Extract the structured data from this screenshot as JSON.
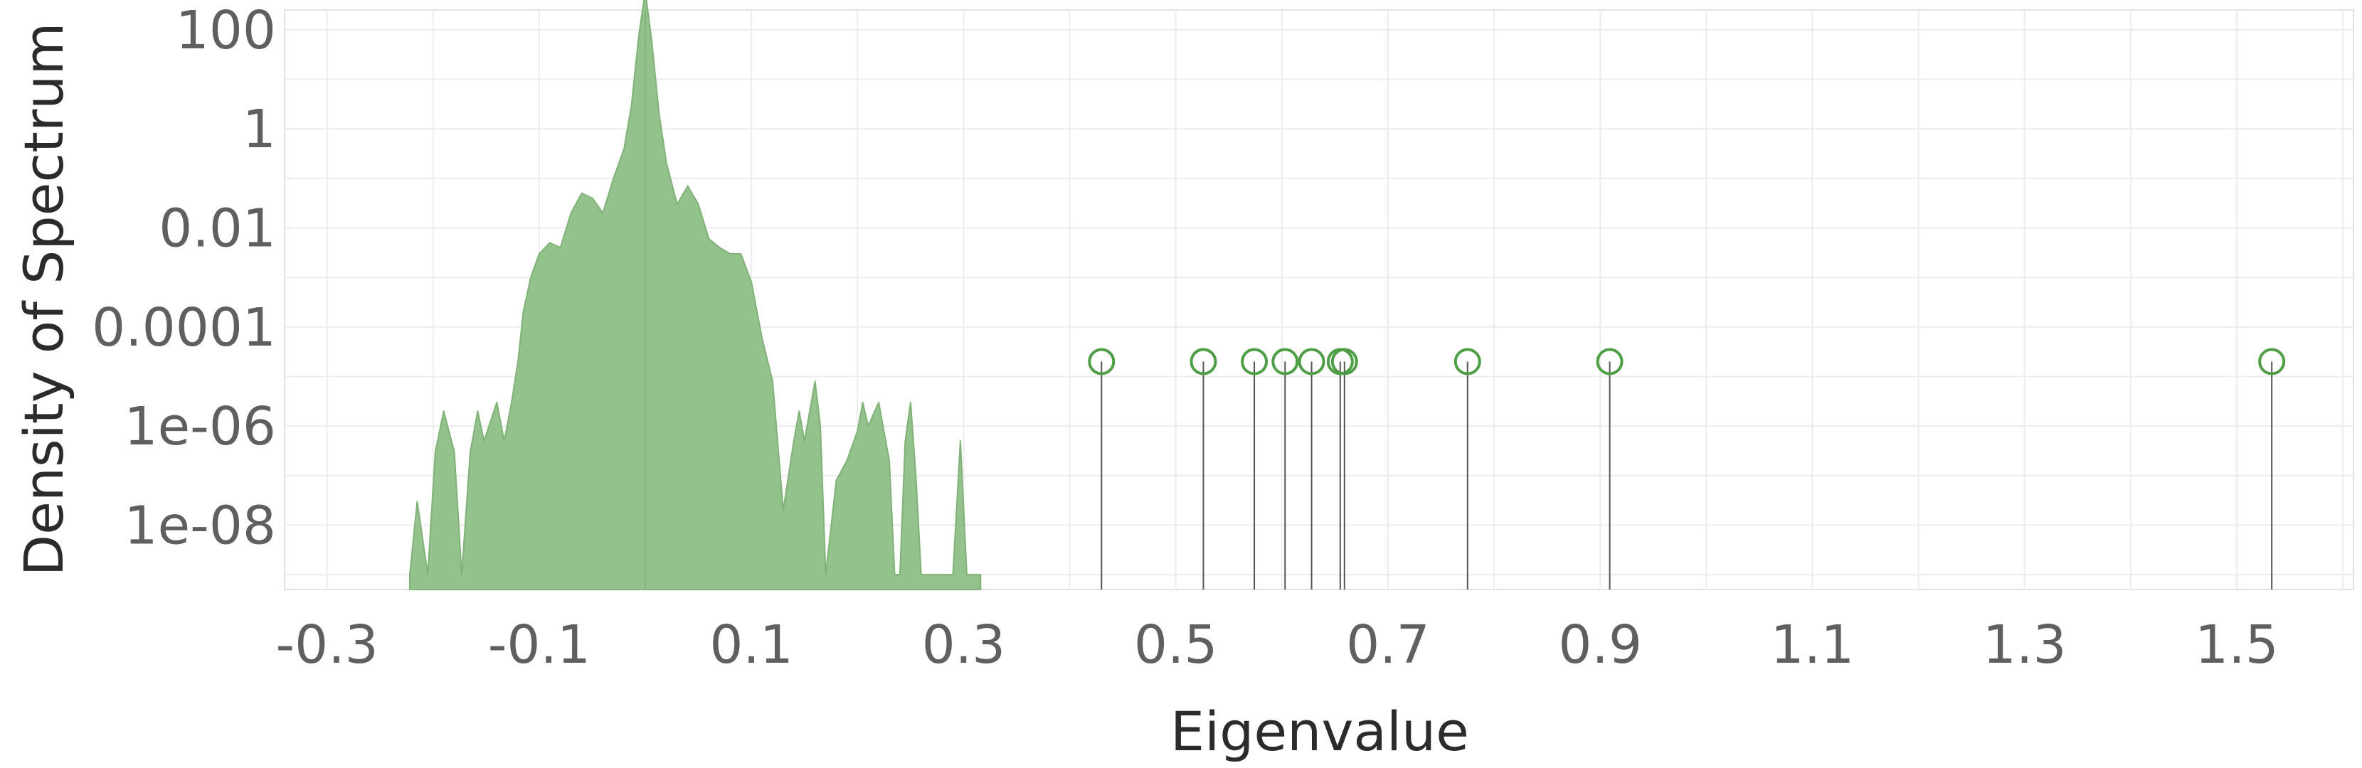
{
  "chart_data": {
    "type": "area",
    "xlabel": "Eigenvalue",
    "ylabel": "Density of Spectrum",
    "y_scale": "log",
    "xlim": [
      -0.34,
      1.61
    ],
    "ylim_log10": [
      -9.3,
      2.4
    ],
    "x_ticks": [
      {
        "value": -0.3,
        "label": "-0.3"
      },
      {
        "value": -0.1,
        "label": "-0.1"
      },
      {
        "value": 0.1,
        "label": "0.1"
      },
      {
        "value": 0.3,
        "label": "0.3"
      },
      {
        "value": 0.5,
        "label": "0.5"
      },
      {
        "value": 0.7,
        "label": "0.7"
      },
      {
        "value": 0.9,
        "label": "0.9"
      },
      {
        "value": 1.1,
        "label": "1.1"
      },
      {
        "value": 1.3,
        "label": "1.3"
      },
      {
        "value": 1.5,
        "label": "1.5"
      }
    ],
    "y_ticks": [
      {
        "value": 100,
        "label": "100"
      },
      {
        "value": 1,
        "label": "1"
      },
      {
        "value": 0.01,
        "label": "0.01"
      },
      {
        "value": 0.0001,
        "label": "0.0001"
      },
      {
        "value": 1e-06,
        "label": "1e-06"
      },
      {
        "value": 1e-08,
        "label": "1e-08"
      }
    ],
    "grid": true,
    "colors": {
      "fill": "#94c28c",
      "stroke": "#7fb276",
      "marker": "#4e9e45",
      "stem": "#555555",
      "grid": "#ececec"
    },
    "density": {
      "x": [
        -0.222,
        -0.215,
        -0.205,
        -0.198,
        -0.19,
        -0.18,
        -0.173,
        -0.165,
        -0.158,
        -0.152,
        -0.14,
        -0.133,
        -0.126,
        -0.12,
        -0.115,
        -0.108,
        -0.1,
        -0.09,
        -0.08,
        -0.07,
        -0.06,
        -0.05,
        -0.04,
        -0.03,
        -0.02,
        -0.013,
        -0.006,
        0.0,
        0.006,
        0.013,
        0.02,
        0.03,
        0.04,
        0.05,
        0.06,
        0.07,
        0.08,
        0.09,
        0.1,
        0.11,
        0.12,
        0.13,
        0.14,
        0.145,
        0.15,
        0.16,
        0.165,
        0.17,
        0.18,
        0.19,
        0.2,
        0.205,
        0.21,
        0.22,
        0.23,
        0.235,
        0.24,
        0.245,
        0.25,
        0.255,
        0.26,
        0.265,
        0.27,
        0.275,
        0.29,
        0.297,
        0.303,
        0.309,
        0.316
      ],
      "y": [
        1e-09,
        3e-08,
        1e-09,
        3e-07,
        2e-06,
        3e-07,
        1e-09,
        3e-07,
        2e-06,
        5e-07,
        3e-06,
        5e-07,
        3e-06,
        2e-05,
        0.0002,
        0.001,
        0.003,
        0.005,
        0.004,
        0.02,
        0.05,
        0.04,
        0.02,
        0.1,
        0.4,
        3,
        80,
        600,
        60,
        2,
        0.2,
        0.03,
        0.07,
        0.03,
        0.006,
        0.004,
        0.003,
        0.003,
        0.0008,
        6e-05,
        8e-06,
        2e-08,
        5e-07,
        2e-06,
        5e-07,
        8e-06,
        1e-06,
        1e-09,
        8e-08,
        2e-07,
        8e-07,
        3e-06,
        1e-06,
        3e-06,
        2e-07,
        1e-09,
        1e-09,
        5e-07,
        3e-06,
        1e-07,
        1e-09,
        1e-09,
        1e-09,
        1e-09,
        1e-09,
        5e-07,
        1e-09,
        1e-09,
        1e-09
      ]
    },
    "outliers": {
      "x": [
        0.43,
        0.526,
        0.574,
        0.603,
        0.628,
        0.655,
        0.659,
        0.775,
        0.909,
        1.533
      ],
      "marker_y": 2e-05
    }
  }
}
